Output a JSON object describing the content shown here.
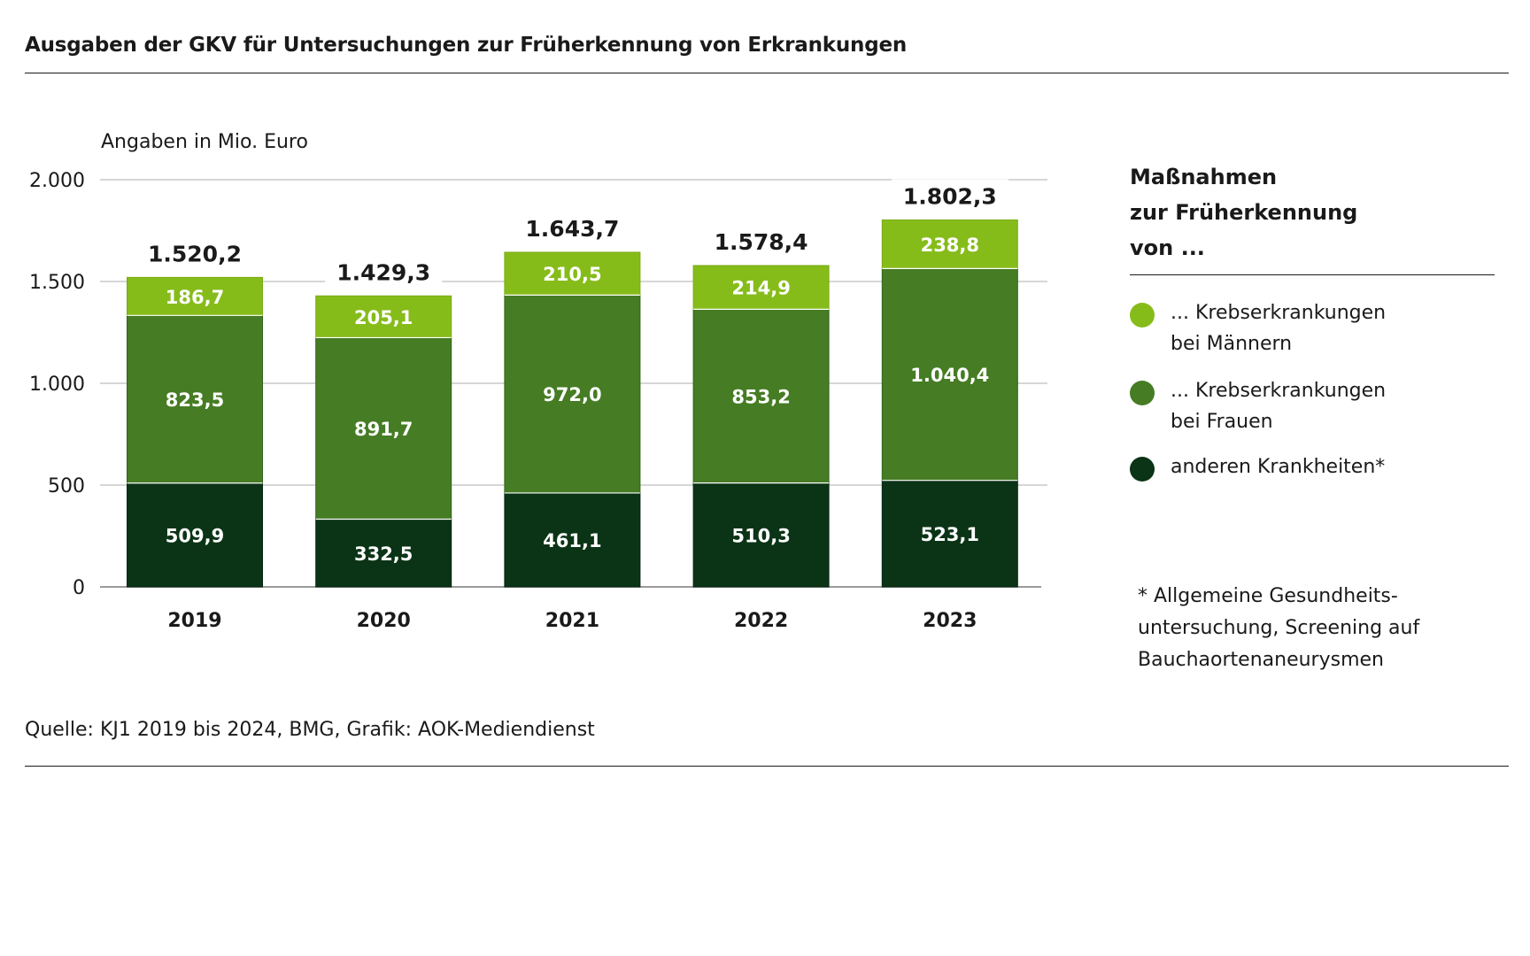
{
  "title": "Ausgaben der GKV für Untersuchungen zur Früherkennung von Erkrankungen",
  "source": "Quelle: KJ1 2019 bis 2024, BMG, Grafik: AOK-Mediendienst",
  "legend": {
    "title": "Maßnahmen\nzur Früherkennung\nvon ...",
    "items": [
      {
        "label": "... Krebserkrankungen\n     bei Männern",
        "color": "#86bc1a"
      },
      {
        "label": "... Krebserkrankungen\n     bei Frauen",
        "color": "#467c24"
      },
      {
        "label": "anderen Krankheiten*",
        "color": "#0b3416"
      }
    ]
  },
  "footnote": "* Allgemeine Gesundheits-\nuntersuchung, Screening auf\nBauchaortenaneurysmen",
  "chart_data": {
    "type": "bar",
    "stacked": true,
    "title": "Ausgaben der GKV für Untersuchungen zur Früherkennung von Erkrankungen",
    "ylabel": "Angaben in Mio. Euro",
    "xlabel": "",
    "categories": [
      "2019",
      "2020",
      "2021",
      "2022",
      "2023"
    ],
    "ylim": [
      0,
      2000
    ],
    "yticks": [
      0,
      500,
      1000,
      1500,
      2000
    ],
    "ytick_labels": [
      "0",
      "500",
      "1.000",
      "1.500",
      "2.000"
    ],
    "grid": true,
    "legend_position": "right",
    "series": [
      {
        "name": "anderen Krankheiten*",
        "color": "#0b3416",
        "values": [
          509.9,
          332.5,
          461.1,
          510.3,
          523.1
        ],
        "labels": [
          "509,9",
          "332,5",
          "461,1",
          "510,3",
          "523,1"
        ]
      },
      {
        "name": "... Krebserkrankungen bei Frauen",
        "color": "#467c24",
        "values": [
          823.5,
          891.7,
          972.0,
          853.2,
          1040.4
        ],
        "labels": [
          "823,5",
          "891,7",
          "972,0",
          "853,2",
          "1.040,4"
        ]
      },
      {
        "name": "... Krebserkrankungen bei Männern",
        "color": "#86bc1a",
        "values": [
          186.7,
          205.1,
          210.5,
          214.9,
          238.8
        ],
        "labels": [
          "186,7",
          "205,1",
          "210,5",
          "214,9",
          "238,8"
        ]
      }
    ],
    "totals": [
      1520.2,
      1429.3,
      1643.7,
      1578.4,
      1802.3
    ],
    "total_labels": [
      "1.520,2",
      "1.429,3",
      "1.643,7",
      "1.578,4",
      "1.802,3"
    ]
  }
}
